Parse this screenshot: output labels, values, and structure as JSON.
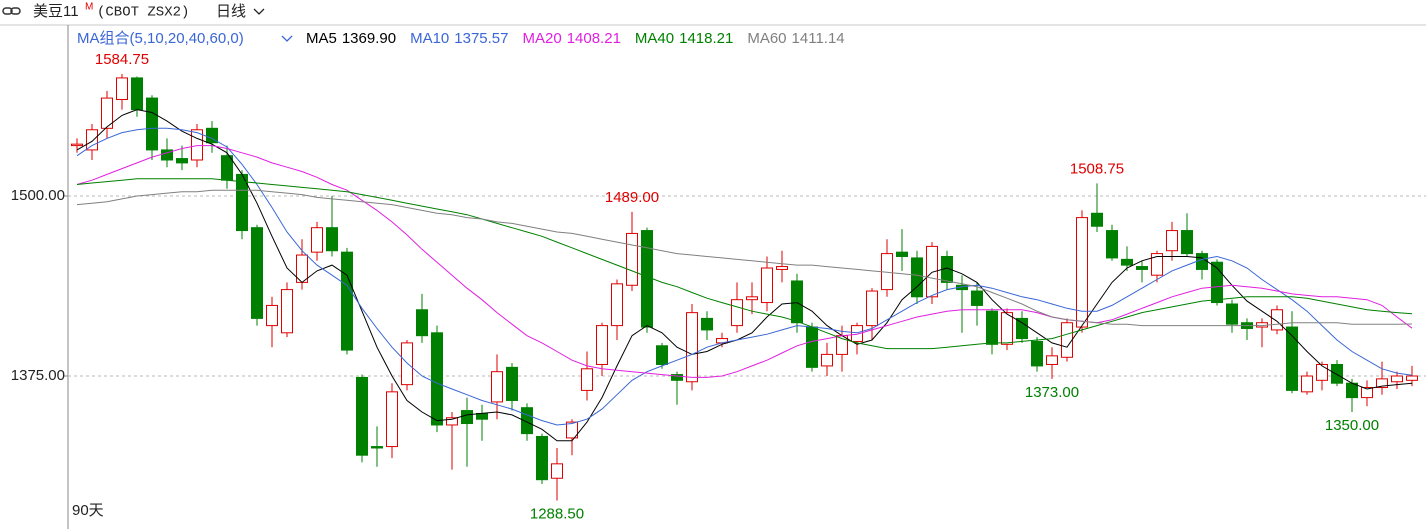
{
  "header": {
    "symbol": "美豆11",
    "badge": "M",
    "code": "(CBOT ZSX2)",
    "period": "日线"
  },
  "chart_data": {
    "type": "candlestick",
    "ma_group": "MA组合(5,10,20,40,60,0)",
    "span_label": "90天",
    "up_color": "#e00000",
    "down_color": "#008000",
    "ylim": [
      1268.75,
      1618.75
    ],
    "yticks": [
      {
        "value": 1500,
        "label": "1500.00"
      },
      {
        "value": 1375,
        "label": "1375.00"
      }
    ],
    "grid": true,
    "open": [
      1535,
      1532,
      1547,
      1567,
      1582,
      1568,
      1532,
      1526,
      1525,
      1547,
      1528,
      1515,
      1478,
      1410,
      1405,
      1440,
      1461,
      1478,
      1461,
      1374,
      1326,
      1326,
      1369,
      1421,
      1405,
      1341,
      1351,
      1349,
      1357,
      1381,
      1353,
      1333,
      1304,
      1332,
      1365,
      1383,
      1410,
      1438,
      1476,
      1396,
      1376,
      1371,
      1415,
      1398,
      1410,
      1428,
      1426,
      1449,
      1441,
      1409,
      1382,
      1390,
      1399,
      1410,
      1435,
      1461,
      1457,
      1430,
      1458,
      1438,
      1434,
      1420,
      1397,
      1415,
      1399,
      1383,
      1388,
      1409,
      1488,
      1476,
      1456,
      1451,
      1445,
      1462,
      1476,
      1460,
      1454,
      1425,
      1412,
      1409,
      1407,
      1409,
      1364,
      1372,
      1383,
      1370,
      1360,
      1367,
      1371,
      1372
    ],
    "high": [
      1540,
      1550,
      1573,
      1584.75,
      1583,
      1570,
      1540,
      1535,
      1550,
      1552,
      1535,
      1518,
      1480,
      1430,
      1440,
      1470,
      1482,
      1500,
      1464,
      1376,
      1340,
      1370,
      1400,
      1432,
      1410,
      1350,
      1360,
      1355,
      1390,
      1384,
      1356,
      1335,
      1325,
      1345,
      1392,
      1412,
      1442,
      1489,
      1478,
      1398,
      1378,
      1425,
      1420,
      1405,
      1440,
      1440,
      1458,
      1462,
      1446,
      1412,
      1398,
      1410,
      1412,
      1436,
      1470,
      1477,
      1462,
      1468,
      1462,
      1445,
      1440,
      1422,
      1422,
      1420,
      1402,
      1395,
      1415,
      1490,
      1508.75,
      1480,
      1465,
      1455,
      1462,
      1482,
      1488,
      1462,
      1456,
      1428,
      1415,
      1415,
      1424,
      1420,
      1378,
      1385,
      1386,
      1373,
      1372,
      1385,
      1378,
      1382
    ],
    "low": [
      1530,
      1525,
      1540,
      1560,
      1555,
      1525,
      1520,
      1518,
      1520,
      1530,
      1505,
      1470,
      1410,
      1395,
      1402,
      1435,
      1455,
      1458,
      1390,
      1315,
      1312,
      1318,
      1365,
      1398,
      1336,
      1310,
      1312,
      1330,
      1345,
      1351,
      1330,
      1300,
      1288.5,
      1320,
      1358,
      1375,
      1400,
      1434,
      1405,
      1380,
      1355,
      1365,
      1400,
      1395,
      1405,
      1418,
      1420,
      1440,
      1405,
      1378,
      1375,
      1378,
      1390,
      1400,
      1430,
      1448,
      1425,
      1425,
      1435,
      1405,
      1410,
      1390,
      1393,
      1398,
      1378,
      1373,
      1385,
      1405,
      1475,
      1455,
      1448,
      1440,
      1440,
      1455,
      1458,
      1442,
      1424,
      1405,
      1400,
      1395,
      1404,
      1363,
      1362,
      1365,
      1368,
      1350,
      1354,
      1362,
      1366,
      1368
    ],
    "close": [
      1536,
      1546,
      1568,
      1582,
      1560,
      1532,
      1525,
      1523,
      1546,
      1537,
      1511,
      1476,
      1415,
      1424,
      1435,
      1459,
      1478,
      1462,
      1393,
      1320,
      1325,
      1364,
      1398,
      1403,
      1341,
      1346,
      1342,
      1345,
      1378,
      1358,
      1335,
      1303,
      1314,
      1343,
      1380,
      1410,
      1439,
      1474,
      1409,
      1383,
      1372,
      1419,
      1407,
      1401,
      1428,
      1430,
      1450,
      1451,
      1412,
      1381,
      1390,
      1403,
      1410,
      1434,
      1460,
      1458,
      1430,
      1465,
      1440,
      1435,
      1424,
      1397,
      1419,
      1401,
      1382,
      1389,
      1412,
      1485,
      1479,
      1457,
      1452,
      1449,
      1460,
      1476,
      1460,
      1449,
      1426,
      1411,
      1408,
      1412,
      1421,
      1365,
      1375,
      1383,
      1370,
      1360,
      1367,
      1373,
      1375,
      1375
    ],
    "series": [
      {
        "name": "MA5",
        "color": "#000000",
        "legend_label": "1369.90",
        "values": [
          1532,
          1538,
          1548,
          1556,
          1560,
          1558,
          1552,
          1545,
          1540,
          1536,
          1530,
          1515,
          1495,
          1472,
          1450,
          1440,
          1448,
          1452,
          1445,
          1420,
          1395,
          1375,
          1358,
          1350,
          1344,
          1345,
          1348,
          1349,
          1350,
          1348,
          1343,
          1338,
          1330,
          1330,
          1343,
          1360,
          1382,
          1403,
          1410,
          1405,
          1395,
          1390,
          1392,
          1397,
          1400,
          1405,
          1416,
          1425,
          1426,
          1420,
          1410,
          1403,
          1397,
          1400,
          1412,
          1428,
          1437,
          1447,
          1450,
          1446,
          1440,
          1428,
          1418,
          1412,
          1405,
          1398,
          1395,
          1410,
          1425,
          1440,
          1450,
          1455,
          1458,
          1458,
          1458,
          1457,
          1450,
          1438,
          1427,
          1420,
          1413,
          1403,
          1392,
          1382,
          1376,
          1370,
          1366,
          1368,
          1369,
          1369.9
        ]
      },
      {
        "name": "MA10",
        "color": "#3a66d6",
        "legend_label": "1375.57",
        "values": [
          1528,
          1535,
          1540,
          1544,
          1546,
          1547,
          1547,
          1546,
          1544,
          1540,
          1534,
          1522,
          1508,
          1492,
          1475,
          1462,
          1452,
          1445,
          1438,
          1422,
          1408,
          1395,
          1384,
          1375,
          1370,
          1366,
          1362,
          1358,
          1355,
          1352,
          1348,
          1344,
          1341,
          1342,
          1345,
          1352,
          1362,
          1372,
          1378,
          1382,
          1386,
          1390,
          1395,
          1398,
          1400,
          1402,
          1404,
          1407,
          1410,
          1409,
          1408,
          1406,
          1405,
          1408,
          1414,
          1420,
          1426,
          1431,
          1435,
          1437,
          1438,
          1436,
          1433,
          1430,
          1428,
          1425,
          1422,
          1420,
          1420,
          1424,
          1430,
          1436,
          1442,
          1448,
          1452,
          1456,
          1458,
          1455,
          1450,
          1442,
          1435,
          1428,
          1420,
          1410,
          1400,
          1392,
          1386,
          1380,
          1377,
          1375.57
        ]
      },
      {
        "name": "MA20",
        "color": "#e020e0",
        "legend_label": "1408.21",
        "values": [
          1508,
          1511,
          1515,
          1519,
          1523,
          1527,
          1530,
          1533,
          1535,
          1535,
          1533,
          1530,
          1527,
          1523,
          1520,
          1517,
          1513,
          1508,
          1504,
          1497,
          1490,
          1482,
          1473,
          1463,
          1454,
          1445,
          1436,
          1428,
          1419,
          1411,
          1403,
          1398,
          1392,
          1386,
          1382,
          1380,
          1379,
          1378,
          1377,
          1376,
          1375,
          1374,
          1374,
          1375,
          1378,
          1382,
          1386,
          1391,
          1396,
          1399,
          1401,
          1403,
          1404,
          1407,
          1410,
          1413,
          1416,
          1418,
          1420,
          1421,
          1421,
          1421,
          1421,
          1421,
          1419,
          1416,
          1414,
          1413,
          1412,
          1414,
          1418,
          1422,
          1426,
          1430,
          1433,
          1436,
          1437,
          1438,
          1437,
          1436,
          1434,
          1432,
          1431,
          1430,
          1430,
          1429,
          1428,
          1424,
          1416,
          1408.21
        ]
      },
      {
        "name": "MA40",
        "color": "#008000",
        "legend_label": "1418.21",
        "values": [
          1508,
          1509,
          1510,
          1511,
          1512,
          1512,
          1512,
          1512,
          1512,
          1512,
          1511,
          1510,
          1509,
          1508,
          1507,
          1506,
          1505,
          1504,
          1503,
          1501,
          1499,
          1497,
          1495,
          1493,
          1491,
          1489,
          1487,
          1484,
          1481,
          1478,
          1475,
          1472,
          1468,
          1464,
          1460,
          1456,
          1452,
          1448,
          1444,
          1440,
          1437,
          1433,
          1429,
          1426,
          1423,
          1420,
          1418,
          1416,
          1413,
          1409,
          1405,
          1401,
          1398,
          1396,
          1394,
          1394,
          1394,
          1394,
          1395,
          1396,
          1397,
          1398,
          1398,
          1399,
          1400,
          1401,
          1404,
          1407,
          1410,
          1413,
          1416,
          1419,
          1421,
          1423,
          1425,
          1427,
          1428,
          1429,
          1430,
          1430,
          1430,
          1430,
          1429,
          1427,
          1425,
          1423,
          1421,
          1420,
          1419,
          1418.21
        ]
      },
      {
        "name": "MA60",
        "color": "#808080",
        "legend_label": "1411.14",
        "values": [
          1494,
          1495,
          1496,
          1498,
          1500,
          1501,
          1502,
          1503,
          1503,
          1504,
          1504,
          1504,
          1504,
          1503,
          1502,
          1501,
          1499,
          1498,
          1497,
          1496,
          1495,
          1494,
          1492,
          1490,
          1488,
          1487,
          1485,
          1484,
          1482,
          1481,
          1479,
          1477,
          1475,
          1474,
          1472,
          1470,
          1468,
          1466,
          1464,
          1462,
          1460,
          1459,
          1458,
          1457,
          1456,
          1455,
          1454,
          1453,
          1452,
          1452,
          1451,
          1450,
          1449,
          1448,
          1447,
          1446,
          1445,
          1443,
          1441,
          1439,
          1437,
          1433,
          1429,
          1425,
          1420,
          1416,
          1414,
          1413,
          1412,
          1411,
          1411,
          1410,
          1410,
          1410,
          1410,
          1410,
          1410,
          1410,
          1410,
          1410,
          1411,
          1412,
          1412,
          1412,
          1412,
          1411,
          1411,
          1411,
          1411,
          1411.14
        ]
      }
    ],
    "annotations": [
      {
        "value": 1584.75,
        "label": "1584.75",
        "position": "above"
      },
      {
        "value": 1489,
        "label": "1489.00",
        "position": "above"
      },
      {
        "value": 1508.75,
        "label": "1508.75",
        "position": "above"
      },
      {
        "value": 1373,
        "label": "1373.00",
        "position": "below"
      },
      {
        "value": 1350,
        "label": "1350.00",
        "position": "below"
      },
      {
        "value": 1288.5,
        "label": "1288.50",
        "position": "below"
      }
    ]
  }
}
